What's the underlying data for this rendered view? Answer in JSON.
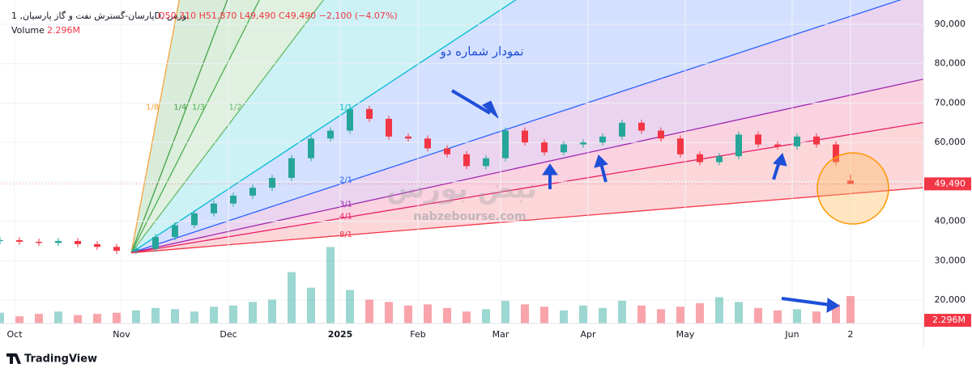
{
  "header": {
    "symbol": "پارسان-گسترش نفت و گاز پارسیان, 1D, بورس",
    "ohlc": "O50,310 H51,870 L49,490 C49,490 −2,100 (−4.07%)",
    "volume_legend": "Volume"
  },
  "footer": {
    "brand": "TradingView"
  },
  "watermark": {
    "logo": "نبض بورس",
    "site": "nabzebourse.com"
  },
  "chart_data": {
    "type": "candlestick",
    "annotation": "نمودار شماره دو",
    "x": [
      0,
      4,
      8,
      12,
      16,
      20,
      24,
      28,
      32,
      36,
      40,
      44,
      48,
      52,
      56,
      60,
      64,
      68,
      72,
      76,
      80,
      84,
      88,
      92,
      96,
      100,
      104,
      108,
      112,
      116,
      120,
      124,
      128,
      132,
      136,
      140,
      144,
      148,
      152,
      156,
      160,
      164,
      168,
      172,
      175
    ],
    "open": [
      35000,
      35200,
      34800,
      34500,
      35000,
      34200,
      33500,
      32500,
      33000,
      36000,
      39000,
      42000,
      44500,
      46500,
      48500,
      51000,
      56000,
      61000,
      63000,
      68500,
      66000,
      61500,
      61000,
      58500,
      57000,
      54000,
      56000,
      63000,
      60000,
      57500,
      59500,
      60000,
      61500,
      65000,
      63000,
      61000,
      57000,
      55000,
      56500,
      62000,
      59500,
      59000,
      61500,
      59500,
      50310
    ],
    "high": [
      36000,
      36000,
      35600,
      35800,
      35800,
      35000,
      34300,
      33800,
      36800,
      39800,
      42800,
      45300,
      47300,
      49300,
      51800,
      56800,
      61800,
      63800,
      69300,
      69300,
      66800,
      62300,
      61800,
      59300,
      57800,
      56800,
      63800,
      63800,
      60800,
      60300,
      60800,
      62300,
      65800,
      65800,
      63800,
      61800,
      57800,
      57300,
      62800,
      62800,
      60300,
      62300,
      62300,
      60300,
      51870
    ],
    "low": [
      34200,
      34000,
      33700,
      33700,
      33400,
      32700,
      31700,
      31700,
      32200,
      35200,
      38200,
      41200,
      43700,
      45700,
      47700,
      50200,
      55200,
      60200,
      62200,
      65200,
      60700,
      60200,
      57700,
      56200,
      53200,
      53200,
      55200,
      59200,
      56700,
      56700,
      58700,
      59200,
      60700,
      62200,
      60200,
      56200,
      54200,
      54200,
      55700,
      58700,
      58200,
      58200,
      58700,
      54200,
      49490
    ],
    "close": [
      35200,
      34800,
      34500,
      35000,
      34200,
      33500,
      32500,
      33000,
      36000,
      39000,
      42000,
      44500,
      46500,
      48500,
      51000,
      56000,
      61000,
      63000,
      68500,
      66000,
      61500,
      61000,
      58500,
      57000,
      54000,
      56000,
      63000,
      60000,
      57500,
      59500,
      60000,
      61500,
      65000,
      63000,
      61000,
      57000,
      55000,
      56500,
      62000,
      59500,
      59000,
      61500,
      59500,
      55000,
      49490
    ],
    "volume": [
      0.9,
      0.6,
      0.8,
      1.0,
      0.7,
      0.8,
      0.9,
      1.1,
      1.3,
      1.2,
      1.0,
      1.4,
      1.5,
      1.8,
      2.0,
      4.3,
      3.0,
      6.4,
      2.8,
      2.0,
      1.8,
      1.5,
      1.6,
      1.3,
      1.0,
      1.2,
      1.9,
      1.6,
      1.4,
      1.1,
      1.5,
      1.3,
      1.9,
      1.5,
      1.2,
      1.4,
      1.7,
      2.2,
      1.8,
      1.3,
      1.1,
      1.2,
      1.0,
      1.6,
      2.296
    ],
    "last_close_label": "49,490",
    "last_volume_label": "2.296M",
    "up_color": "#26a69a",
    "down_color": "#f23645",
    "xlim": [
      0,
      190
    ],
    "ylim": [
      14060,
      96150
    ],
    "volume_lim": [
      0,
      8.8
    ],
    "xticks": [
      {
        "value": 3,
        "label": "Oct"
      },
      {
        "value": 25,
        "label": "Nov"
      },
      {
        "value": 47,
        "label": "Dec"
      },
      {
        "value": 70,
        "label": "2025"
      },
      {
        "value": 86,
        "label": "Feb"
      },
      {
        "value": 103,
        "label": "Mar"
      },
      {
        "value": 121,
        "label": "Apr"
      },
      {
        "value": 141,
        "label": "May"
      },
      {
        "value": 163,
        "label": "Jun"
      },
      {
        "value": 175,
        "label": "2"
      }
    ],
    "yticks": [
      {
        "value": 20000,
        "label": "20,000"
      },
      {
        "value": 30000,
        "label": "30,000"
      },
      {
        "value": 40000,
        "label": "40,000"
      },
      {
        "value": 50000,
        "label": "50,000"
      },
      {
        "value": 60000,
        "label": "60,000"
      },
      {
        "value": 70000,
        "label": "70,000"
      },
      {
        "value": 80000,
        "label": "80,000"
      },
      {
        "value": 90000,
        "label": "90,000"
      }
    ],
    "grid": true,
    "gann_fan": {
      "anchor": {
        "x": 27,
        "price": 32000
      },
      "unit": {
        "x": 72,
        "price": 68500
      },
      "levels": [
        {
          "value": 0.125,
          "label": "1/8",
          "color": "#f7a33b"
        },
        {
          "value": 0.25,
          "label": "1/4",
          "color": "#43a047"
        },
        {
          "value": 0.3333,
          "label": "1/3",
          "color": "#4caf50"
        },
        {
          "value": 0.5,
          "label": "1/2",
          "color": "#66bb6a"
        },
        {
          "value": 1,
          "label": "1/1",
          "color": "#00bcd4"
        },
        {
          "value": 2,
          "label": "2/1",
          "color": "#2962ff"
        },
        {
          "value": 3,
          "label": "3/1",
          "color": "#9c27b0"
        },
        {
          "value": 4,
          "label": "4/1",
          "color": "#e91e63"
        },
        {
          "value": 8,
          "label": "8/1",
          "color": "#f23645"
        }
      ]
    }
  }
}
